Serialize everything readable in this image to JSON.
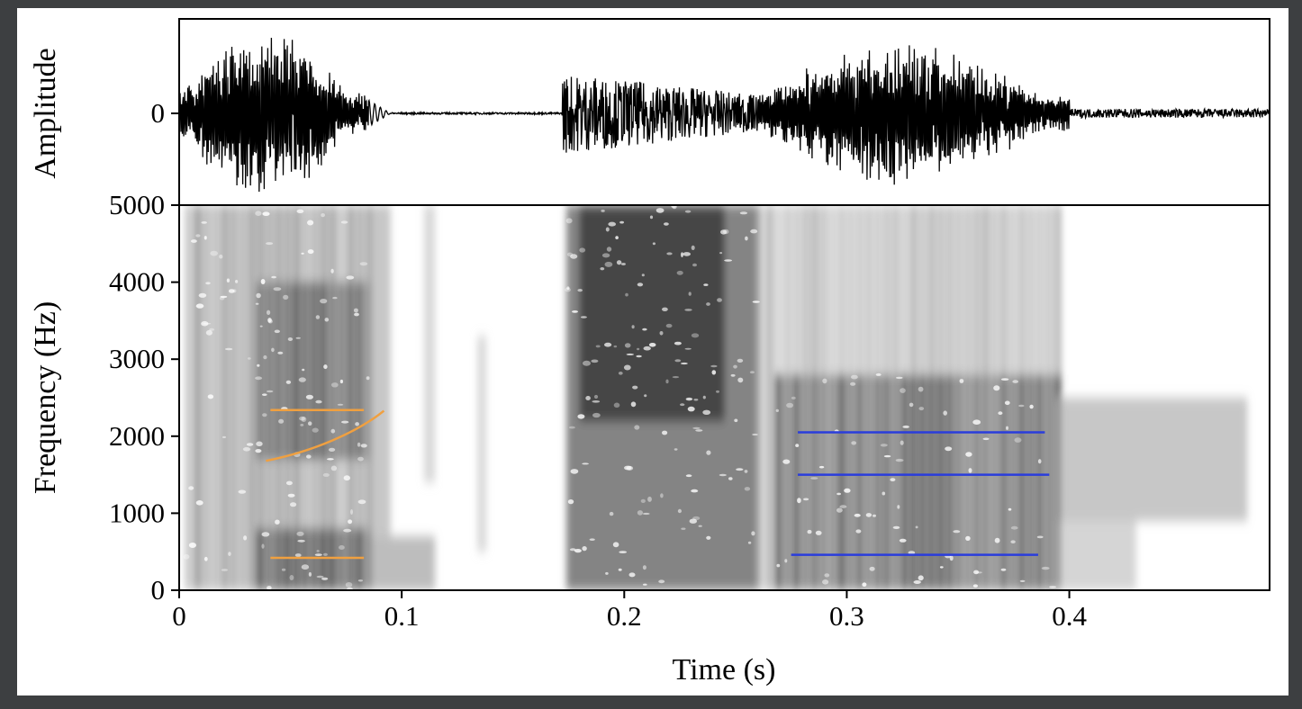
{
  "chart_data": [
    {
      "type": "line",
      "panel": "waveform",
      "ylabel": "Amplitude",
      "xlim": [
        0,
        0.49
      ],
      "yticks": [
        {
          "value": 0,
          "label": "0"
        }
      ],
      "bursts": [
        {
          "start": 0.0,
          "end": 0.085,
          "amplitude": 0.95,
          "kind": "periodic"
        },
        {
          "start": 0.085,
          "end": 0.095,
          "amplitude": 0.15,
          "kind": "decay"
        },
        {
          "start": 0.095,
          "end": 0.172,
          "amplitude": 0.01,
          "kind": "silence"
        },
        {
          "start": 0.172,
          "end": 0.26,
          "amplitude": 0.45,
          "kind": "noise"
        },
        {
          "start": 0.26,
          "end": 0.4,
          "amplitude": 0.8,
          "kind": "periodic"
        },
        {
          "start": 0.4,
          "end": 0.49,
          "amplitude": 0.05,
          "kind": "noise"
        }
      ]
    },
    {
      "type": "heatmap",
      "panel": "spectrogram",
      "xlabel": "Time (s)",
      "ylabel": "Frequency (Hz)",
      "xlim": [
        0,
        0.49
      ],
      "ylim": [
        0,
        5000
      ],
      "xticks": [
        {
          "value": 0,
          "label": "0"
        },
        {
          "value": 0.1,
          "label": "0.1"
        },
        {
          "value": 0.2,
          "label": "0.2"
        },
        {
          "value": 0.3,
          "label": "0.3"
        },
        {
          "value": 0.4,
          "label": "0.4"
        }
      ],
      "yticks": [
        {
          "value": 0,
          "label": "0"
        },
        {
          "value": 1000,
          "label": "1000"
        },
        {
          "value": 2000,
          "label": "2000"
        },
        {
          "value": 3000,
          "label": "3000"
        },
        {
          "value": 4000,
          "label": "4000"
        },
        {
          "value": 5000,
          "label": "5000"
        }
      ],
      "energy_regions": [
        {
          "t0": 0.003,
          "t1": 0.085,
          "f0": 0,
          "f1": 5000,
          "darkness": 0.55,
          "striations": true
        },
        {
          "t0": 0.035,
          "t1": 0.085,
          "f0": 0,
          "f1": 800,
          "darkness": 0.9,
          "striations": true
        },
        {
          "t0": 0.035,
          "t1": 0.085,
          "f0": 1700,
          "f1": 4000,
          "darkness": 0.85,
          "striations": true
        },
        {
          "t0": 0.085,
          "t1": 0.115,
          "f0": 0,
          "f1": 700,
          "darkness": 0.35,
          "striations": false
        },
        {
          "t0": 0.085,
          "t1": 0.095,
          "f0": 700,
          "f1": 5000,
          "darkness": 0.3,
          "striations": false
        },
        {
          "t0": 0.11,
          "t1": 0.115,
          "f0": 1400,
          "f1": 5000,
          "darkness": 0.2,
          "striations": false
        },
        {
          "t0": 0.134,
          "t1": 0.138,
          "f0": 500,
          "f1": 3300,
          "darkness": 0.2,
          "striations": false
        },
        {
          "t0": 0.174,
          "t1": 0.26,
          "f0": 0,
          "f1": 5000,
          "darkness": 0.65,
          "striations": false
        },
        {
          "t0": 0.18,
          "t1": 0.245,
          "f0": 2200,
          "f1": 5000,
          "darkness": 0.85,
          "striations": false
        },
        {
          "t0": 0.26,
          "t1": 0.395,
          "f0": 0,
          "f1": 5000,
          "darkness": 0.4,
          "striations": true
        },
        {
          "t0": 0.268,
          "t1": 0.395,
          "f0": 0,
          "f1": 2800,
          "darkness": 0.85,
          "striations": true
        },
        {
          "t0": 0.395,
          "t1": 0.48,
          "f0": 900,
          "f1": 2500,
          "darkness": 0.3,
          "striations": false
        },
        {
          "t0": 0.395,
          "t1": 0.43,
          "f0": 0,
          "f1": 900,
          "darkness": 0.22,
          "striations": false
        }
      ],
      "annotations": [
        {
          "type": "line",
          "color": "#f0a040",
          "x": [
            0.041,
            0.083
          ],
          "y": [
            420,
            420
          ]
        },
        {
          "type": "line",
          "color": "#f0a040",
          "x": [
            0.041,
            0.083
          ],
          "y": [
            2340,
            2340
          ]
        },
        {
          "type": "curve",
          "color": "#f0a040",
          "x": [
            0.039,
            0.06,
            0.08,
            0.092
          ],
          "y": [
            1680,
            1800,
            2050,
            2330
          ]
        },
        {
          "type": "line",
          "color": "#2a3ddc",
          "x": [
            0.278,
            0.389
          ],
          "y": [
            2050,
            2050
          ]
        },
        {
          "type": "line",
          "color": "#2a3ddc",
          "x": [
            0.278,
            0.391
          ],
          "y": [
            1500,
            1500
          ]
        },
        {
          "type": "line",
          "color": "#2a3ddc",
          "x": [
            0.275,
            0.386
          ],
          "y": [
            460,
            460
          ]
        }
      ]
    }
  ]
}
